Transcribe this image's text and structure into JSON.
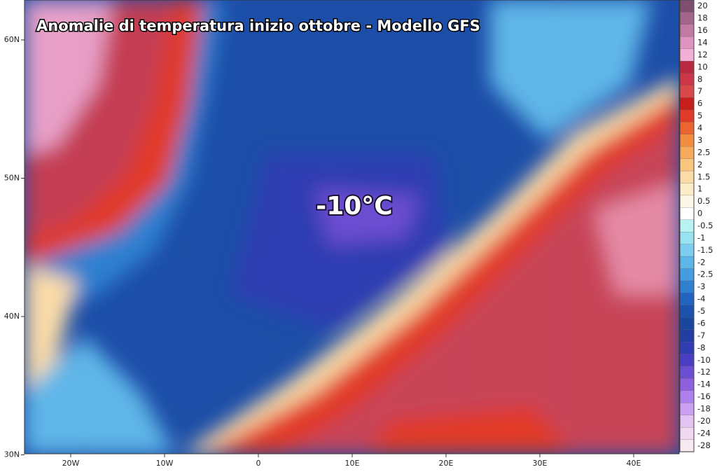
{
  "title": "Anomalie di temperatura inizio ottobre - Modello GFS",
  "annotation": "-10°C",
  "lat_labels": [
    "60N",
    "50N",
    "40N",
    "30N"
  ],
  "lon_labels": [
    "20W",
    "10W",
    "0",
    "10E",
    "20E",
    "30E",
    "40E"
  ],
  "legend": [
    {
      "label": "20",
      "color": "#7f4f72"
    },
    {
      "label": "18",
      "color": "#a3668a"
    },
    {
      "label": "16",
      "color": "#c27aa2"
    },
    {
      "label": "14",
      "color": "#de93c0"
    },
    {
      "label": "12",
      "color": "#f2b0d6"
    },
    {
      "label": "10",
      "color": "#b82840"
    },
    {
      "label": "8",
      "color": "#cc3648"
    },
    {
      "label": "7",
      "color": "#d94848"
    },
    {
      "label": "6",
      "color": "#c81e1e"
    },
    {
      "label": "5",
      "color": "#e23a28"
    },
    {
      "label": "4",
      "color": "#ec6430"
    },
    {
      "label": "3",
      "color": "#f48c40"
    },
    {
      "label": "2.5",
      "color": "#f7aa5c"
    },
    {
      "label": "2",
      "color": "#f9c680"
    },
    {
      "label": "1.5",
      "color": "#fbdca8"
    },
    {
      "label": "1",
      "color": "#fdecc8"
    },
    {
      "label": "0.5",
      "color": "#fef6e6"
    },
    {
      "label": "0",
      "color": "#ffffff"
    },
    {
      "label": "-0.5",
      "color": "#b8f2f2"
    },
    {
      "label": "-1",
      "color": "#98e2f2"
    },
    {
      "label": "-1.5",
      "color": "#7ccdf0"
    },
    {
      "label": "-2",
      "color": "#5eb6e8"
    },
    {
      "label": "-2.5",
      "color": "#449ddf"
    },
    {
      "label": "-3",
      "color": "#2f80d0"
    },
    {
      "label": "-4",
      "color": "#2262c0"
    },
    {
      "label": "-5",
      "color": "#1a52ad"
    },
    {
      "label": "-6",
      "color": "#1a46a0"
    },
    {
      "label": "-7",
      "color": "#223ea4"
    },
    {
      "label": "-8",
      "color": "#2f3cb2"
    },
    {
      "label": "-10",
      "color": "#4c3ec4"
    },
    {
      "label": "-12",
      "color": "#6c4ed2"
    },
    {
      "label": "-14",
      "color": "#8e60e0"
    },
    {
      "label": "-16",
      "color": "#ae80ee"
    },
    {
      "label": "-18",
      "color": "#cca0f2"
    },
    {
      "label": "-20",
      "color": "#e4c2f2"
    },
    {
      "label": "-24",
      "color": "#f0d8f0"
    },
    {
      "label": "-28",
      "color": "#f8e8f0"
    }
  ]
}
